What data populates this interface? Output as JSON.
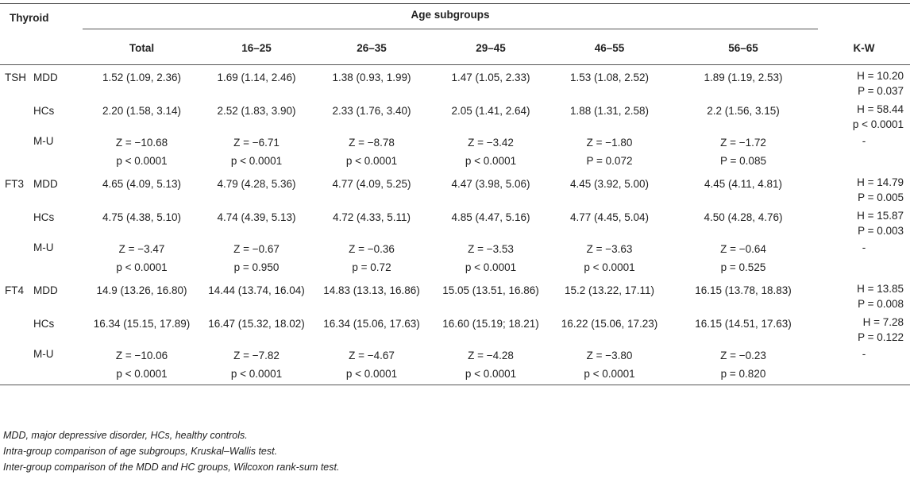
{
  "header": {
    "thyroid": "Thyroid",
    "age_subgroups": "Age subgroups",
    "cols": [
      "Total",
      "16–25",
      "26–35",
      "29–45",
      "46–55",
      "56–65"
    ],
    "kw": "K-W"
  },
  "rows": [
    {
      "hormone": "TSH",
      "mdd": {
        "label": "MDD",
        "vals": [
          "1.52 (1.09, 2.36)",
          "1.69 (1.14, 2.46)",
          "1.38 (0.93, 1.99)",
          "1.47 (1.05, 2.33)",
          "1.53 (1.08, 2.52)",
          "1.89 (1.19, 2.53)"
        ],
        "kw1": "H = 10.20",
        "kw2": "P = 0.037"
      },
      "hcs": {
        "label": "HCs",
        "vals": [
          "2.20 (1.58, 3.14)",
          "2.52 (1.83, 3.90)",
          "2.33 (1.76, 3.40)",
          "2.05 (1.41, 2.64)",
          "1.88 (1.31, 2.58)",
          "2.2 (1.56, 3.15)"
        ],
        "kw1": "H = 58.44",
        "kw2": "p < 0.0001"
      },
      "mu": {
        "label": "M-U",
        "z": [
          "Z = −10.68",
          "Z = −6.71",
          "Z = −8.78",
          "Z = −3.42",
          "Z = −1.80",
          "Z = −1.72"
        ],
        "p": [
          "p < 0.0001",
          "p < 0.0001",
          "p < 0.0001",
          "p < 0.0001",
          "P = 0.072",
          "P = 0.085"
        ],
        "kw": "-"
      }
    },
    {
      "hormone": "FT3",
      "mdd": {
        "label": "MDD",
        "vals": [
          "4.65 (4.09, 5.13)",
          "4.79 (4.28, 5.36)",
          "4.77 (4.09, 5.25)",
          "4.47 (3.98, 5.06)",
          "4.45 (3.92, 5.00)",
          "4.45 (4.11, 4.81)"
        ],
        "kw1": "H = 14.79",
        "kw2": "P = 0.005"
      },
      "hcs": {
        "label": "HCs",
        "vals": [
          "4.75 (4.38, 5.10)",
          "4.74 (4.39, 5.13)",
          "4.72 (4.33, 5.11)",
          "4.85 (4.47, 5.16)",
          "4.77 (4.45, 5.04)",
          "4.50 (4.28, 4.76)"
        ],
        "kw1": "H = 15.87",
        "kw2": "P = 0.003"
      },
      "mu": {
        "label": "M-U",
        "z": [
          "Z = −3.47",
          "Z = −0.67",
          "Z = −0.36",
          "Z = −3.53",
          "Z = −3.63",
          "Z = −0.64"
        ],
        "p": [
          "p < 0.0001",
          "p = 0.950",
          "p = 0.72",
          "p < 0.0001",
          "p < 0.0001",
          "p = 0.525"
        ],
        "kw": "-"
      }
    },
    {
      "hormone": "FT4",
      "mdd": {
        "label": "MDD",
        "vals": [
          "14.9 (13.26, 16.80)",
          "14.44 (13.74, 16.04)",
          "14.83 (13.13, 16.86)",
          "15.05 (13.51, 16.86)",
          "15.2 (13.22, 17.11)",
          "16.15 (13.78, 18.83)"
        ],
        "kw1": "H = 13.85",
        "kw2": "P = 0.008"
      },
      "hcs": {
        "label": "HCs",
        "vals": [
          "16.34 (15.15, 17.89)",
          "16.47 (15.32, 18.02)",
          "16.34 (15.06, 17.63)",
          "16.60 (15.19; 18.21)",
          "16.22 (15.06, 17.23)",
          "16.15 (14.51, 17.63)"
        ],
        "kw1": "H = 7.28",
        "kw2": "P = 0.122"
      },
      "mu": {
        "label": "M-U",
        "z": [
          "Z = −10.06",
          "Z = −7.82",
          "Z = −4.67",
          "Z = −4.28",
          "Z = −3.80",
          "Z = −0.23"
        ],
        "p": [
          "p < 0.0001",
          "p < 0.0001",
          "p < 0.0001",
          "p < 0.0001",
          "p < 0.0001",
          "p = 0.820"
        ],
        "kw": "-"
      }
    }
  ],
  "notes": [
    "MDD, major depressive disorder, HCs, healthy controls.",
    "Intra-group comparison of age subgroups, Kruskal–Wallis test.",
    "Inter-group comparison of the MDD and HC groups, Wilcoxon rank-sum test."
  ]
}
